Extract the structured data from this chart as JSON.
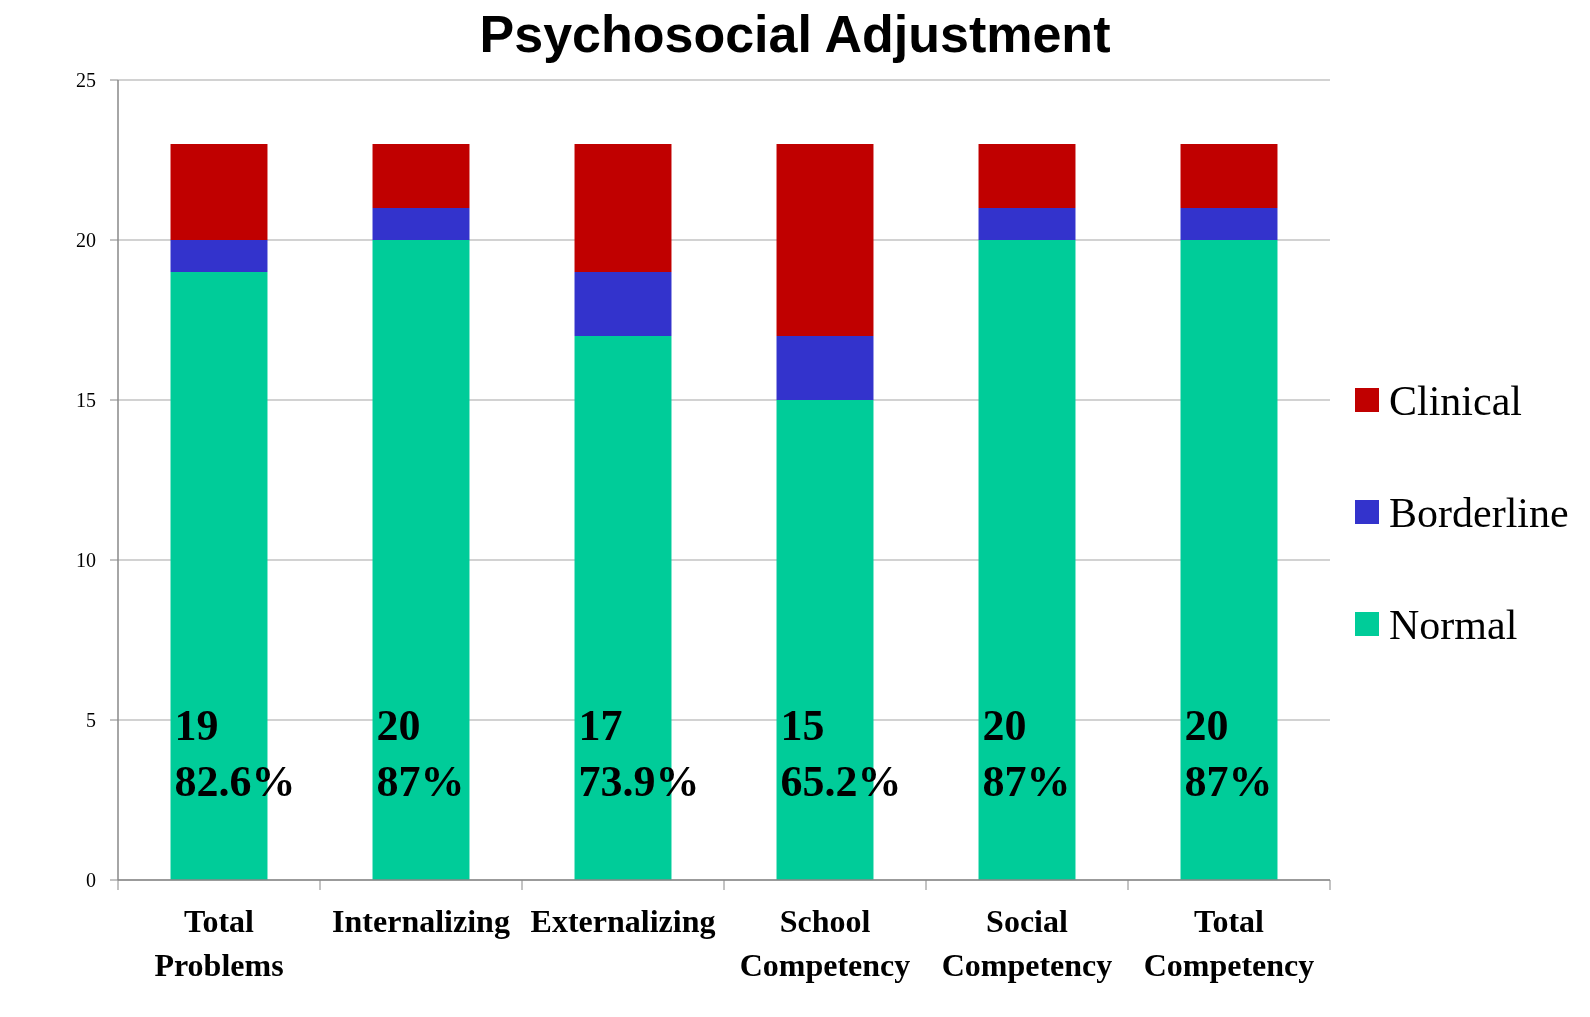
{
  "chart_data": {
    "type": "bar",
    "title": "Psychosocial Adjustment",
    "stacked": true,
    "categories": [
      "Total Problems",
      "Internalizing",
      "Externalizing",
      "School Competency",
      "Social Competency",
      "Total Competency"
    ],
    "series": [
      {
        "name": "Normal",
        "color": "#00cc99",
        "values": [
          19,
          20,
          17,
          15,
          20,
          20
        ],
        "value_labels": [
          "19\n82.6%",
          "20\n87%",
          "17\n73.9%",
          "15\n65.2%",
          "20\n87%",
          "20\n87%"
        ]
      },
      {
        "name": "Borderline",
        "color": "#3333cc",
        "values": [
          1,
          1,
          2,
          2,
          1,
          1
        ]
      },
      {
        "name": "Clinical",
        "color": "#c00000",
        "values": [
          3,
          2,
          4,
          6,
          2,
          2
        ]
      }
    ],
    "ylim": [
      0,
      25
    ],
    "yticks": [
      0,
      5,
      10,
      15,
      20,
      25
    ],
    "grid": "y",
    "legend": "right"
  }
}
